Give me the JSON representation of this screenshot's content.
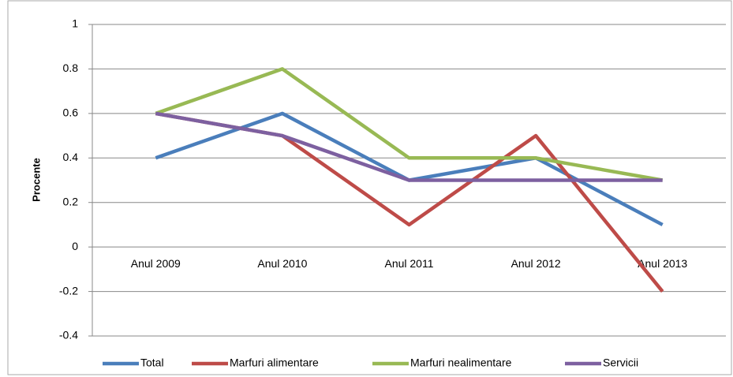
{
  "chart_data": {
    "type": "line",
    "y_label": "Procente",
    "categories": [
      "Anul 2009",
      "Anul 2010",
      "Anul 2011",
      "Anul 2012",
      "Anul 2013"
    ],
    "series": [
      {
        "name": "Total",
        "color": "#4a7ebb",
        "values": [
          0.4,
          0.6,
          0.3,
          0.4,
          0.1
        ]
      },
      {
        "name": "Marfuri alimentare",
        "color": "#be4b48",
        "values": [
          0.6,
          0.5,
          0.1,
          0.5,
          -0.2
        ]
      },
      {
        "name": "Marfuri nealimentare",
        "color": "#98b954",
        "values": [
          0.6,
          0.8,
          0.4,
          0.4,
          0.3
        ]
      },
      {
        "name": "Servicii",
        "color": "#7d60a0",
        "values": [
          0.6,
          0.5,
          0.3,
          0.3,
          0.3
        ]
      }
    ],
    "ylim": [
      -0.4,
      1
    ],
    "yticks": [
      -0.4,
      -0.2,
      0,
      0.2,
      0.4,
      0.6,
      0.8,
      1
    ],
    "grid": true,
    "legend": "bottom"
  }
}
